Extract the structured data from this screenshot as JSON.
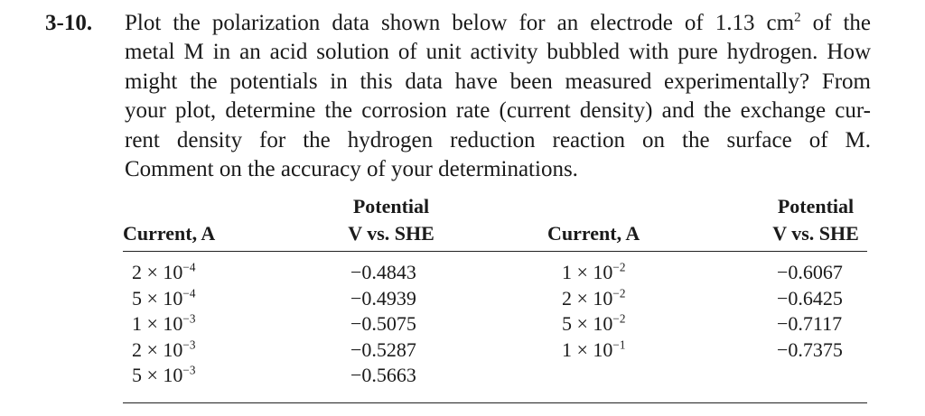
{
  "problem": {
    "number": "3-10.",
    "lines": [
      "Plot the polarization data shown below for an electrode of 1.13 cm",
      "metal M in an acid solution of unit activity bubbled with pure hydrogen. How",
      "might the potentials in this data have been measured experimentally? From",
      "your plot, determine the corrosion rate (current density) and the exchange cur-",
      "rent density for the hydrogen reduction reaction on the surface of M.",
      "Comment on the accuracy of your determinations."
    ],
    "line1_superscript": "2",
    "line1_tail": " of the"
  },
  "table": {
    "headers": {
      "current": "Current, A",
      "potential_line1": "Potential",
      "potential_line2": "V vs. SHE"
    },
    "left": {
      "current": [
        "2 × 10",
        "5 × 10",
        "1 × 10",
        "2 × 10",
        "5 × 10"
      ],
      "current_exp": [
        "−4",
        "−4",
        "−3",
        "−3",
        "−3"
      ],
      "potential": [
        "−0.4843",
        "−0.4939",
        "−0.5075",
        "−0.5287",
        "−0.5663"
      ]
    },
    "right": {
      "current": [
        "1 × 10",
        "2 × 10",
        "5 × 10",
        "1 × 10"
      ],
      "current_exp": [
        "−2",
        "−2",
        "−2",
        "−1"
      ],
      "potential": [
        "−0.6067",
        "−0.6425",
        "−0.7117",
        "−0.7375"
      ]
    }
  }
}
